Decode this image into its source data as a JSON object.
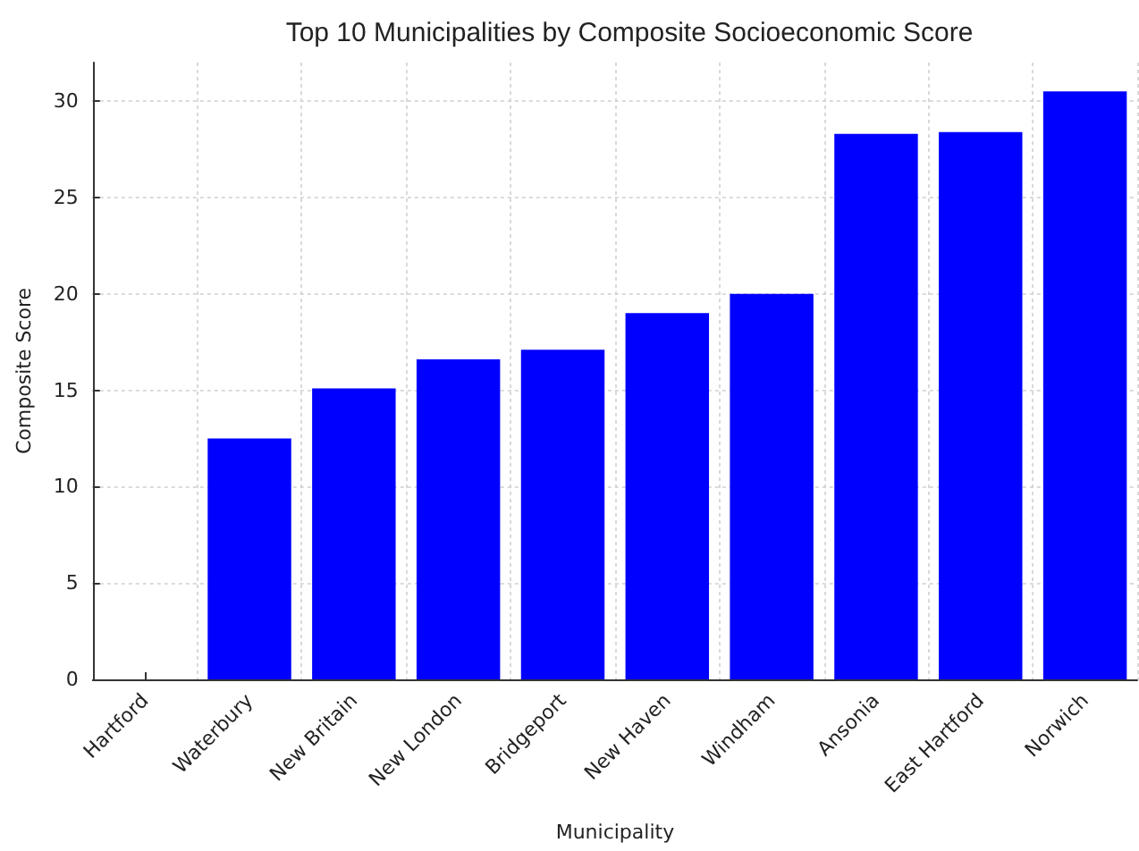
{
  "chart_data": {
    "type": "bar",
    "title": "Top 10 Municipalities by Composite Socioeconomic Score",
    "xlabel": "Municipality",
    "ylabel": "Composite Score",
    "categories": [
      "Hartford",
      "Waterbury",
      "New Britain",
      "New London",
      "Bridgeport",
      "New Haven",
      "Windham",
      "Ansonia",
      "East Hartford",
      "Norwich"
    ],
    "values": [
      0,
      12.5,
      15.1,
      16.6,
      17.1,
      19.0,
      20.0,
      28.3,
      28.4,
      30.5
    ],
    "color": "#0000ff",
    "ylim": [
      0,
      32
    ],
    "yticks": [
      0,
      5,
      10,
      15,
      20,
      25,
      30
    ],
    "grid": true
  }
}
